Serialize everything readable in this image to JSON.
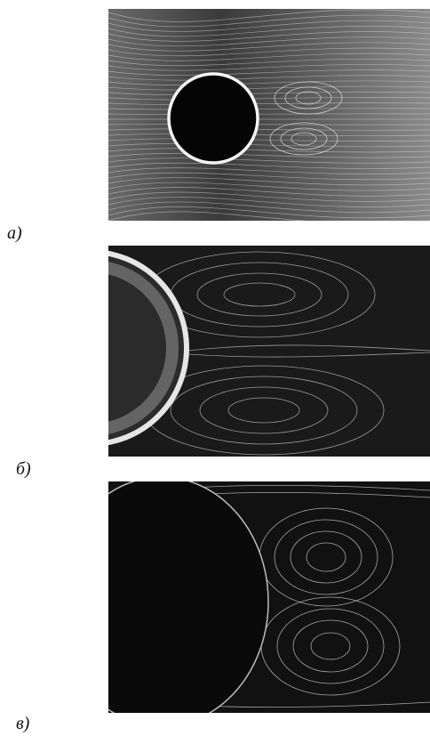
{
  "panels": [
    {
      "label": "a)"
    },
    {
      "label": "б)"
    },
    {
      "label": "в)"
    }
  ],
  "colors": {
    "background": "#ffffff",
    "photo_dark": "#0b0b0b",
    "streak": "#e8e8e8"
  }
}
